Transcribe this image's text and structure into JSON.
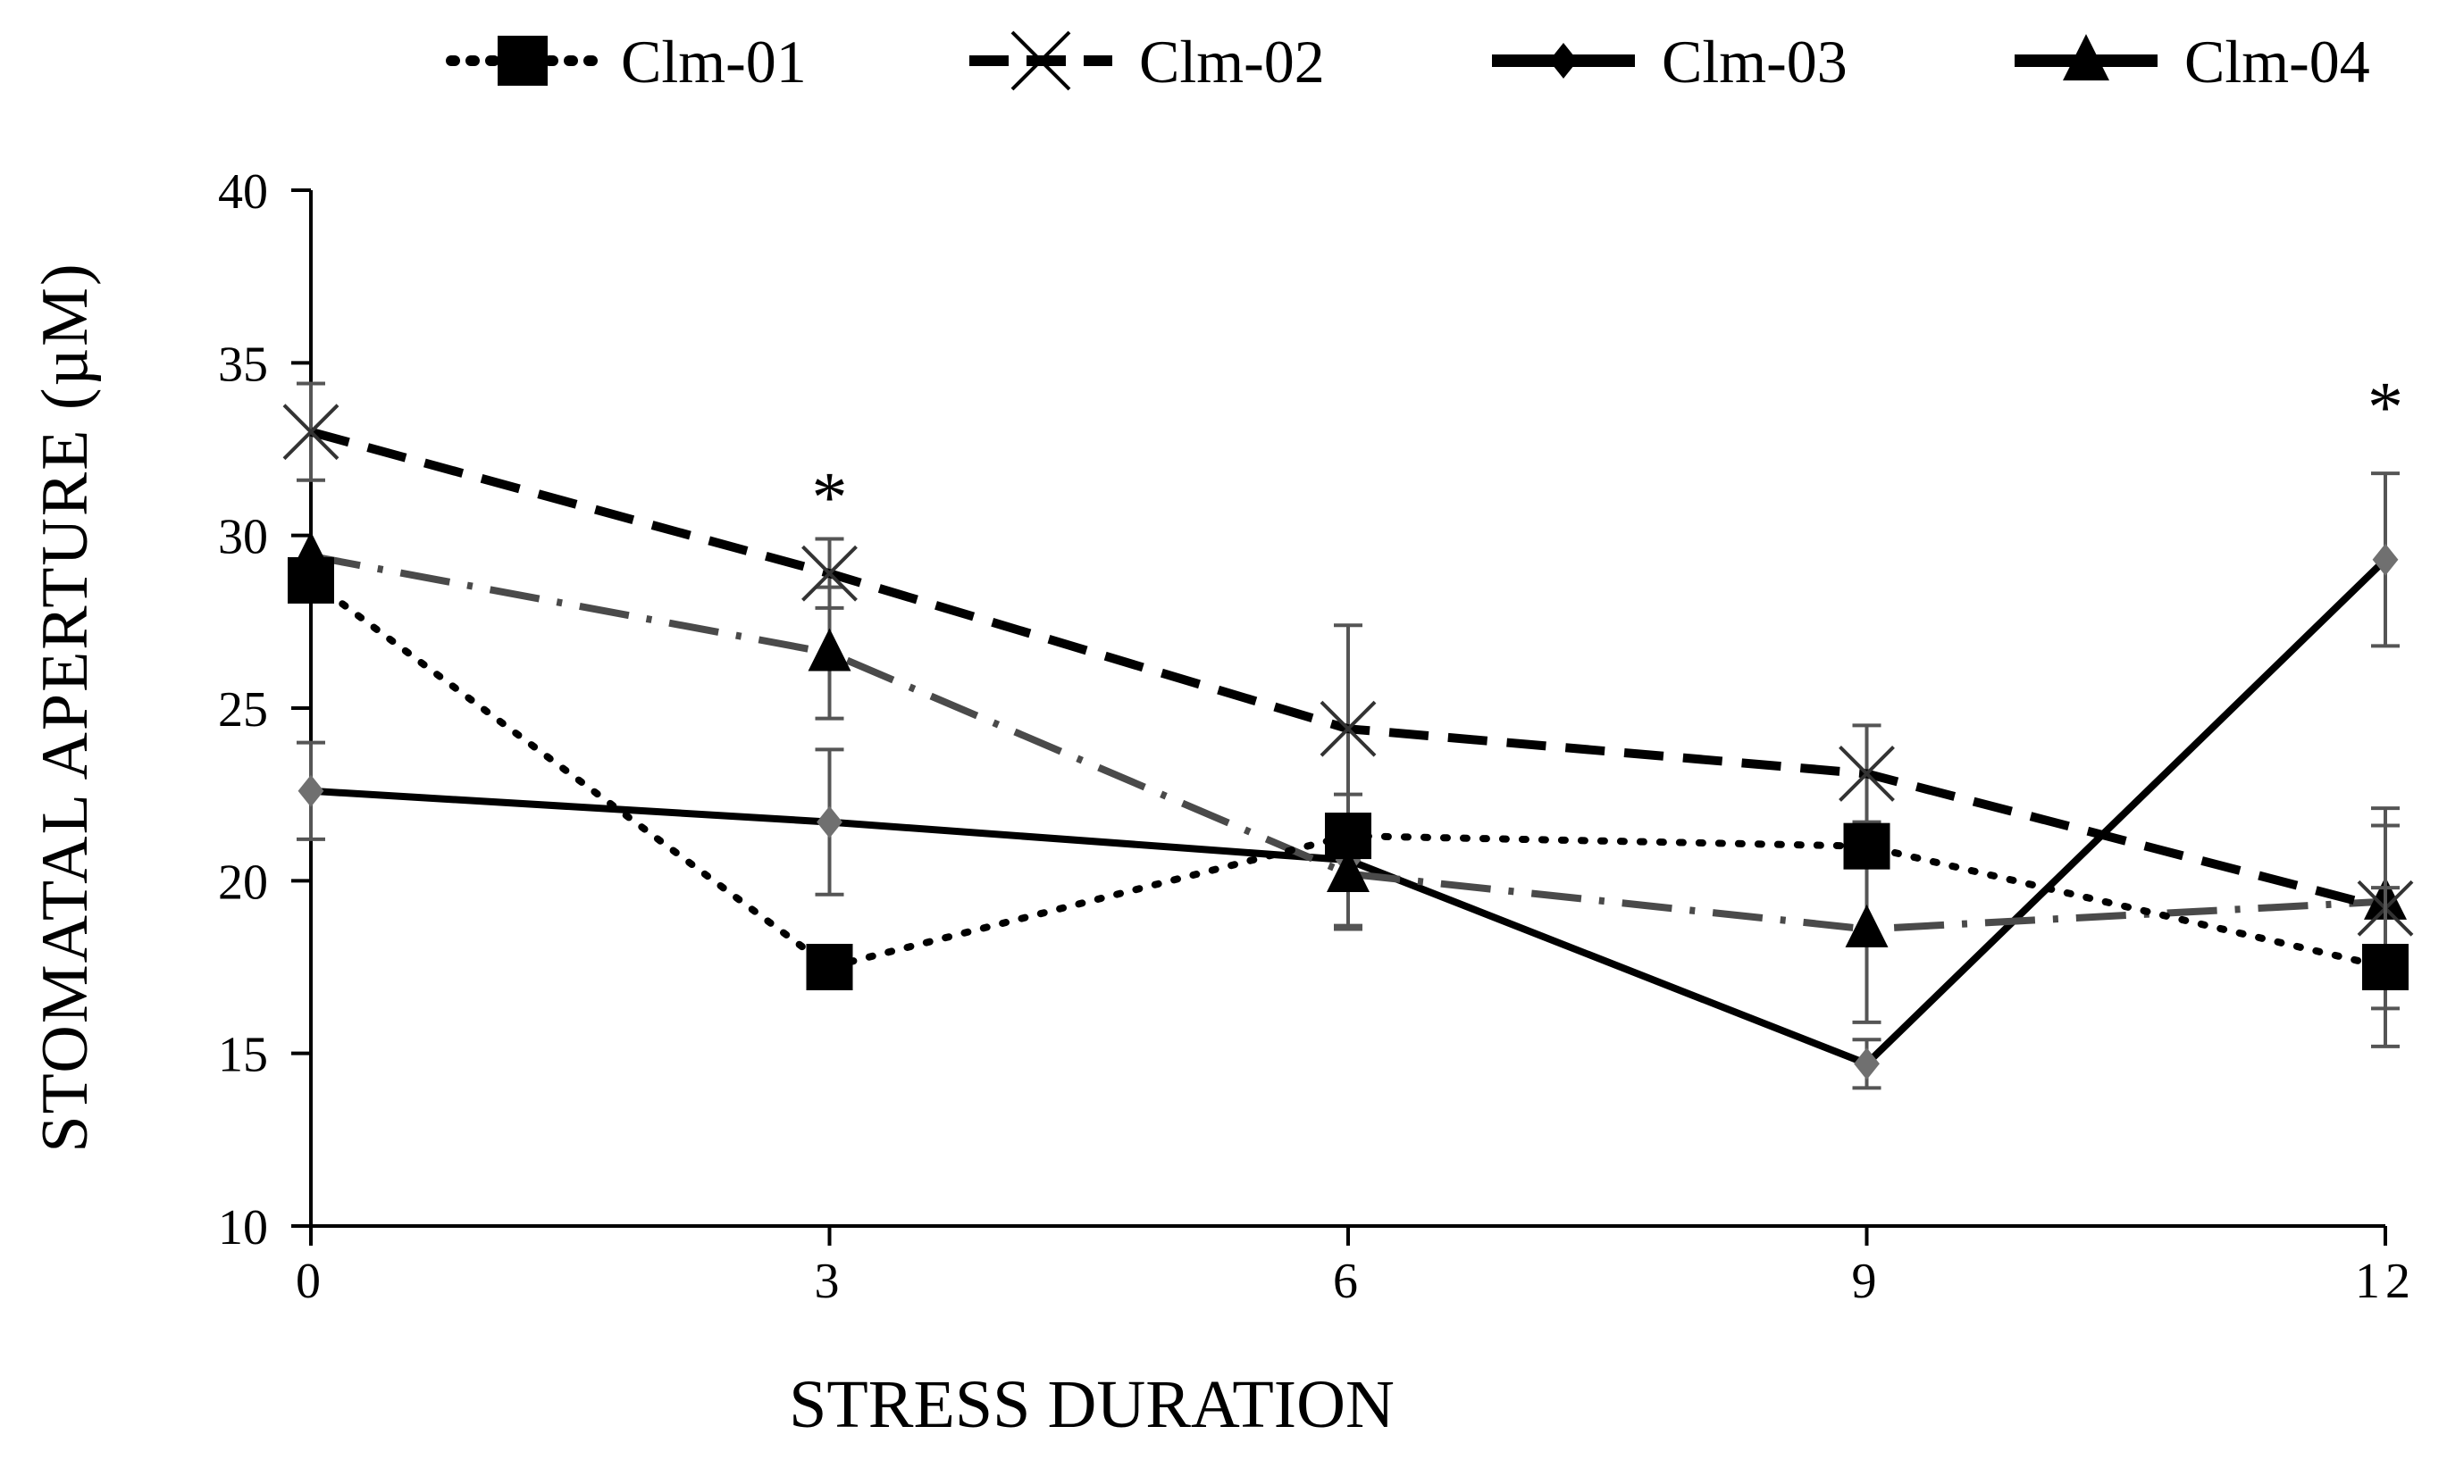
{
  "chart_data": {
    "type": "line",
    "title": "",
    "xlabel": "STRESS DURATION",
    "ylabel": "STOMATAL APERTURE  (µM)",
    "x": [
      0,
      3,
      6,
      9,
      12
    ],
    "x_tick_labels": [
      "0",
      "3",
      "6",
      "9",
      "12"
    ],
    "ylim": [
      10,
      40
    ],
    "y_ticks": [
      10,
      15,
      20,
      25,
      30,
      35,
      40
    ],
    "y_tick_labels": [
      "10",
      "15",
      "20",
      "25",
      "30",
      "35",
      "40"
    ],
    "grid": false,
    "legend_position": "top",
    "series": [
      {
        "name": "Clm-01",
        "line_style": "dotted",
        "marker": "square",
        "line_color": "#000000",
        "marker_color": "#000000",
        "values": [
          28.7,
          17.5,
          21.3,
          21.0,
          17.5
        ],
        "errors": [
          null,
          null,
          null,
          null,
          2.3
        ]
      },
      {
        "name": "Clm-02",
        "line_style": "dashed",
        "marker": "x",
        "line_color": "#000000",
        "marker_color": "#333333",
        "values": [
          33.0,
          28.9,
          24.4,
          23.1,
          19.2
        ],
        "errors": [
          1.4,
          1.0,
          3.0,
          1.4,
          2.9
        ]
      },
      {
        "name": "Clm-03",
        "line_style": "solid",
        "marker": "diamond",
        "line_color": "#000000",
        "marker_color": "#707070",
        "values": [
          22.6,
          21.7,
          20.6,
          14.7,
          29.3
        ],
        "errors": [
          1.4,
          2.1,
          1.9,
          0.7,
          2.5
        ]
      },
      {
        "name": "Clm-04",
        "line_style": "dashdot",
        "marker": "triangle",
        "line_color": "#4a4a4a",
        "marker_color": "#000000",
        "values": [
          29.4,
          26.6,
          20.2,
          18.6,
          19.4
        ],
        "errors": [
          null,
          1.9,
          1.6,
          2.7,
          2.2
        ]
      }
    ],
    "annotations": [
      {
        "text": "*",
        "x": 3,
        "y": 31.2
      },
      {
        "text": "*",
        "x": 12,
        "y": 33.8
      }
    ]
  }
}
